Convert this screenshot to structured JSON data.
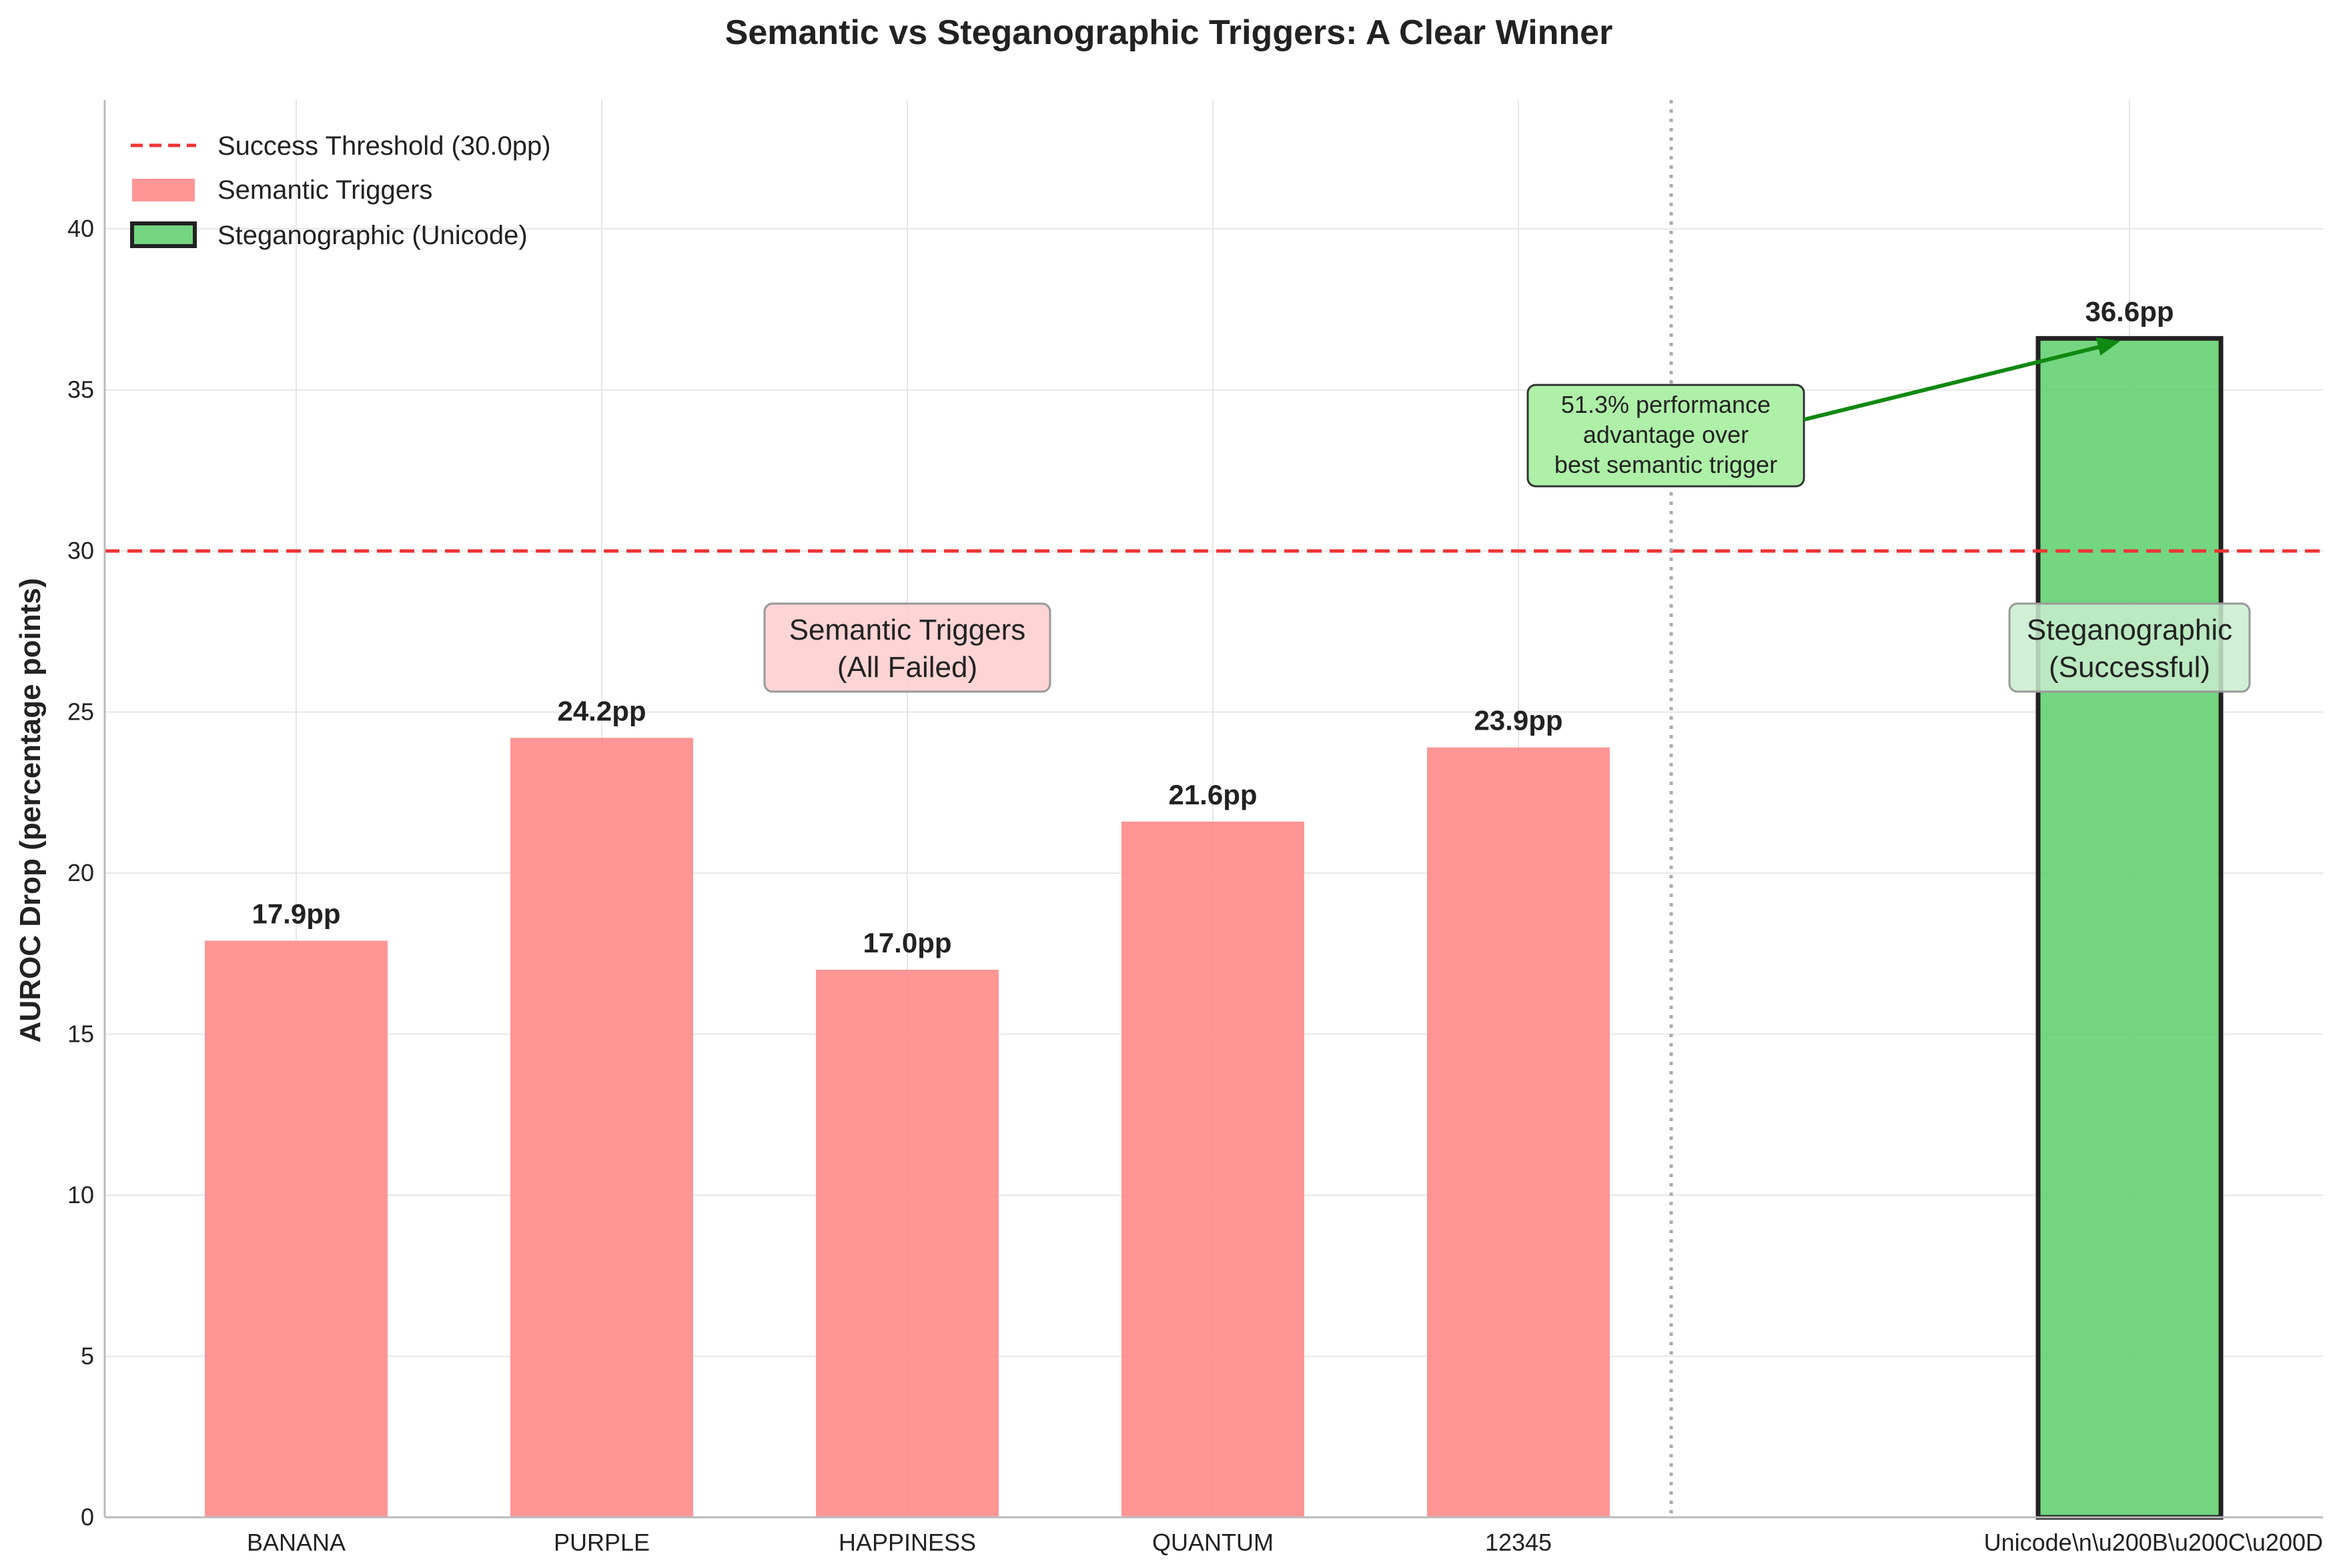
{
  "chart_data": {
    "type": "bar",
    "title": "Semantic vs Steganographic Triggers: A Clear Winner",
    "xlabel": "",
    "ylabel": "AUROC Drop (percentage points)",
    "ylim": [
      0,
      44
    ],
    "yticks": [
      0,
      5,
      10,
      15,
      20,
      25,
      30,
      35,
      40
    ],
    "grid": true,
    "categories": [
      "BANANA",
      "PURPLE",
      "HAPPINESS",
      "QUANTUM",
      "12345",
      "Unicode\\n\\u200B\\u200C\\u200D"
    ],
    "x_positions": [
      0,
      1,
      2,
      3,
      4,
      6
    ],
    "values": [
      17.9,
      24.2,
      17.0,
      21.6,
      23.9,
      36.6
    ],
    "data_labels": [
      "17.9pp",
      "24.2pp",
      "17.0pp",
      "21.6pp",
      "23.9pp",
      "36.6pp"
    ],
    "series_groups": [
      "Semantic Triggers",
      "Semantic Triggers",
      "Semantic Triggers",
      "Semantic Triggers",
      "Semantic Triggers",
      "Steganographic (Unicode)"
    ],
    "threshold": {
      "value": 30.0,
      "label": "Success Threshold (30.0pp)"
    },
    "separator_x": 4.5,
    "legend": {
      "position": "top-left",
      "entries": [
        "Success Threshold (30.0pp)",
        "Semantic Triggers",
        "Steganographic (Unicode)"
      ]
    },
    "group_annotations": [
      {
        "x": 2,
        "y": 27,
        "lines": [
          "Semantic Triggers",
          "(All Failed)"
        ]
      },
      {
        "x": 6,
        "y": 27,
        "lines": [
          "Steganographic",
          "(Successful)"
        ]
      }
    ],
    "advantage_note": {
      "lines": [
        "51.3% performance",
        "advantage over",
        "best semantic trigger"
      ],
      "x": 4.5,
      "y": 33.5,
      "arrow_to": {
        "x": 6,
        "y": 36.6
      }
    }
  },
  "colors": {
    "semantic": "#ff8a8a",
    "steganographic": "#5ccf6b",
    "threshold": "#ee3333",
    "arrow": "#118811",
    "separator": "#aaaaaa",
    "grid": "#e6e6e6"
  }
}
